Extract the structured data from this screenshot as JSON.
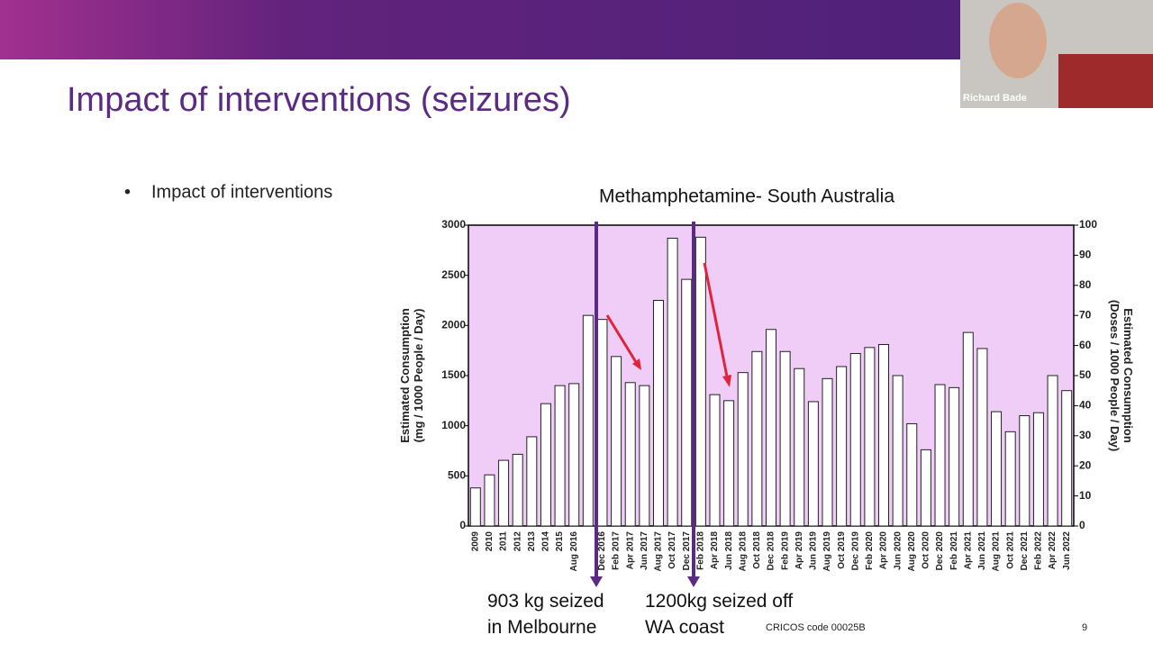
{
  "slide": {
    "title": "Impact of interventions (seizures)",
    "bullet": "Impact of interventions",
    "footer": "CRICOS code 00025B",
    "page_number": "9",
    "presenter": "Richard Bade"
  },
  "chart_data": {
    "type": "bar",
    "title": "Methamphetamine- South Australia",
    "y_label": [
      "Estimated Consumption",
      "(mg / 1000 People / Day)"
    ],
    "y2_label": [
      "Estimated Consumption",
      "(Doses / 1000 People / Day)"
    ],
    "categories": [
      "2009",
      "2010",
      "2011",
      "2012",
      "2013",
      "2014",
      "2015",
      "Aug 2016",
      null,
      "Dec 2016",
      "Feb 2017",
      "Apr 2017",
      "Jun 2017",
      "Aug 2017",
      "Oct 2017",
      "Dec 2017",
      "Feb 2018",
      "Apr 2018",
      "Jun 2018",
      "Aug 2018",
      "Oct 2018",
      "Dec 2018",
      "Feb 2019",
      "Apr 2019",
      "Jun 2019",
      "Aug 2019",
      "Oct 2019",
      "Dec 2019",
      "Feb 2020",
      "Apr 2020",
      "Jun 2020",
      "Aug 2020",
      "Oct 2020",
      "Dec 2020",
      "Feb 2021",
      "Apr 2021",
      "Jun 2021",
      "Aug 2021",
      "Oct 2021",
      "Dec 2021",
      "Feb 2022",
      "Apr 2022",
      "Jun 2022"
    ],
    "values": [
      380,
      510,
      655,
      715,
      890,
      1220,
      1400,
      1420,
      2100,
      2060,
      1690,
      1430,
      1400,
      2250,
      2870,
      2460,
      2880,
      1310,
      1250,
      1530,
      1740,
      1960,
      1740,
      1570,
      1240,
      1470,
      1590,
      1720,
      1780,
      1810,
      1500,
      1020,
      760,
      1410,
      1380,
      1930,
      1770,
      1140,
      940,
      1100,
      1130,
      1500,
      1350
    ],
    "color": "#ffffff",
    "background": "#efcdf7",
    "ylim": [
      0,
      3000
    ],
    "yticks": [
      0,
      500,
      1000,
      1500,
      2000,
      2500,
      3000
    ],
    "y2lim": [
      0,
      100
    ],
    "y2ticks": [
      0,
      10,
      20,
      30,
      40,
      50,
      60,
      70,
      80,
      90,
      100
    ],
    "annotations": [
      [
        "903 kg seized",
        "in Melbourne"
      ],
      [
        "1200kg seized off",
        "WA coast"
      ]
    ]
  }
}
